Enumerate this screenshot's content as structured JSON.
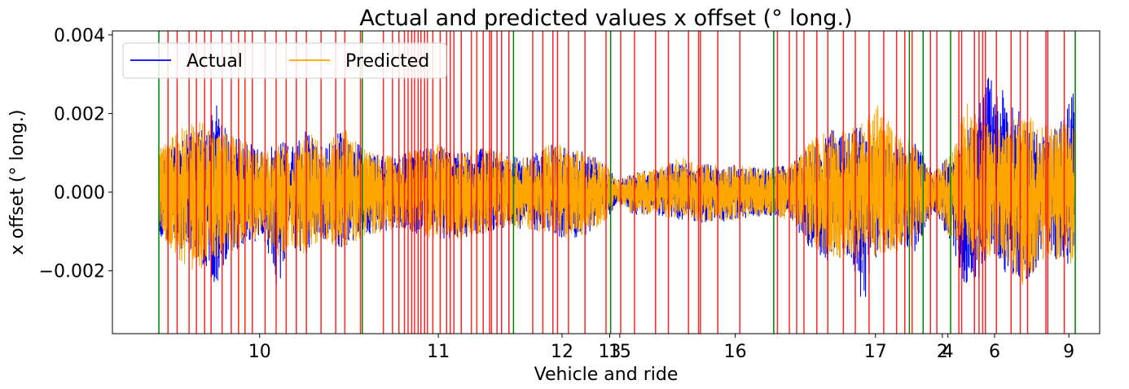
{
  "chart_data": {
    "type": "line",
    "title": "Actual and predicted values x offset (° long.)",
    "xlabel": "Vehicle and ride",
    "ylabel": "x offset (° long.)",
    "xlim": [
      0,
      1000
    ],
    "ylim": [
      -0.0036,
      0.0041
    ],
    "yticks": [
      {
        "value": -0.002,
        "label": "−0.002"
      },
      {
        "value": 0.0,
        "label": "0.000"
      },
      {
        "value": 0.002,
        "label": "0.002"
      },
      {
        "value": 0.004,
        "label": "0.004"
      }
    ],
    "xticks": [
      {
        "value": 110,
        "label": "10"
      },
      {
        "value": 305,
        "label": "11"
      },
      {
        "value": 440,
        "label": "12"
      },
      {
        "value": 492,
        "label": "13"
      },
      {
        "value": 503,
        "label": "15"
      },
      {
        "value": 629,
        "label": "16"
      },
      {
        "value": 782,
        "label": "17"
      },
      {
        "value": 855,
        "label": "2"
      },
      {
        "value": 861,
        "label": "4"
      },
      {
        "value": 912,
        "label": "6"
      },
      {
        "value": 993,
        "label": "9"
      }
    ],
    "legend": {
      "placement": "top-left",
      "columns": 2
    },
    "series": [
      {
        "name": "Actual",
        "color": "#0000ff",
        "envelope": [
          [
            0,
            0.001,
            -0.0012
          ],
          [
            20,
            0.0014,
            -0.0014
          ],
          [
            40,
            0.0016,
            -0.0017
          ],
          [
            55,
            0.0017,
            -0.002
          ],
          [
            62,
            0.0025,
            -0.0026
          ],
          [
            75,
            0.0015,
            -0.0016
          ],
          [
            95,
            0.0013,
            -0.0013
          ],
          [
            115,
            0.001,
            -0.0012
          ],
          [
            130,
            0.0013,
            -0.0026
          ],
          [
            145,
            0.0012,
            -0.0014
          ],
          [
            160,
            0.0016,
            -0.0016
          ],
          [
            180,
            0.0011,
            -0.0012
          ],
          [
            200,
            0.0016,
            -0.0015
          ],
          [
            225,
            0.0011,
            -0.0011
          ],
          [
            245,
            0.0009,
            -0.001
          ],
          [
            265,
            0.001,
            -0.0009
          ],
          [
            285,
            0.0011,
            -0.0011
          ],
          [
            305,
            0.0012,
            -0.0012
          ],
          [
            325,
            0.001,
            -0.0012
          ],
          [
            345,
            0.0011,
            -0.0011
          ],
          [
            365,
            0.0011,
            -0.001
          ],
          [
            385,
            0.0009,
            -0.0009
          ],
          [
            405,
            0.0009,
            -0.001
          ],
          [
            425,
            0.0012,
            -0.001
          ],
          [
            445,
            0.0012,
            -0.0012
          ],
          [
            465,
            0.001,
            -0.0011
          ],
          [
            485,
            0.0008,
            -0.0008
          ],
          [
            500,
            0.0003,
            -0.0003
          ],
          [
            520,
            0.0005,
            -0.0006
          ],
          [
            545,
            0.0006,
            -0.0006
          ],
          [
            570,
            0.0008,
            -0.0007
          ],
          [
            600,
            0.0007,
            -0.0008
          ],
          [
            630,
            0.0007,
            -0.0007
          ],
          [
            660,
            0.0006,
            -0.0006
          ],
          [
            690,
            0.0007,
            -0.0007
          ],
          [
            710,
            0.0012,
            -0.0015
          ],
          [
            735,
            0.0016,
            -0.0018
          ],
          [
            755,
            0.0015,
            -0.0016
          ],
          [
            770,
            0.0018,
            -0.0032
          ],
          [
            785,
            0.0014,
            -0.0016
          ],
          [
            805,
            0.0013,
            -0.0014
          ],
          [
            825,
            0.0013,
            -0.0015
          ],
          [
            845,
            0.0005,
            -0.0005
          ],
          [
            865,
            0.001,
            -0.0013
          ],
          [
            880,
            0.0014,
            -0.0024
          ],
          [
            895,
            0.0023,
            -0.0022
          ],
          [
            910,
            0.0032,
            -0.0015
          ],
          [
            925,
            0.0024,
            -0.0021
          ],
          [
            945,
            0.002,
            -0.0023
          ],
          [
            965,
            0.0014,
            -0.0017
          ],
          [
            985,
            0.0018,
            -0.0017
          ],
          [
            1000,
            0.0027,
            -0.002
          ]
        ]
      },
      {
        "name": "Predicted",
        "color": "#ffa500",
        "envelope": [
          [
            0,
            0.0011,
            -0.0011
          ],
          [
            20,
            0.0016,
            -0.0017
          ],
          [
            40,
            0.0018,
            -0.0021
          ],
          [
            55,
            0.0017,
            -0.0019
          ],
          [
            62,
            0.0015,
            -0.0017
          ],
          [
            75,
            0.0015,
            -0.0016
          ],
          [
            95,
            0.0013,
            -0.0013
          ],
          [
            115,
            0.001,
            -0.0011
          ],
          [
            130,
            0.0012,
            -0.0017
          ],
          [
            145,
            0.0012,
            -0.0014
          ],
          [
            160,
            0.0017,
            -0.0016
          ],
          [
            180,
            0.0011,
            -0.0012
          ],
          [
            200,
            0.0017,
            -0.0015
          ],
          [
            225,
            0.0011,
            -0.0011
          ],
          [
            245,
            0.0009,
            -0.001
          ],
          [
            265,
            0.001,
            -0.0009
          ],
          [
            285,
            0.0011,
            -0.0011
          ],
          [
            305,
            0.0012,
            -0.0012
          ],
          [
            325,
            0.001,
            -0.0012
          ],
          [
            345,
            0.0011,
            -0.0011
          ],
          [
            365,
            0.0011,
            -0.001
          ],
          [
            385,
            0.0009,
            -0.0009
          ],
          [
            405,
            0.0009,
            -0.001
          ],
          [
            425,
            0.0012,
            -0.001
          ],
          [
            445,
            0.0012,
            -0.0012
          ],
          [
            465,
            0.001,
            -0.0011
          ],
          [
            485,
            0.0008,
            -0.0008
          ],
          [
            500,
            0.0003,
            -0.0003
          ],
          [
            520,
            0.0005,
            -0.0006
          ],
          [
            545,
            0.0006,
            -0.0006
          ],
          [
            570,
            0.0009,
            -0.0007
          ],
          [
            600,
            0.0007,
            -0.0008
          ],
          [
            630,
            0.0007,
            -0.0007
          ],
          [
            660,
            0.0006,
            -0.0006
          ],
          [
            690,
            0.0007,
            -0.0007
          ],
          [
            710,
            0.0013,
            -0.0014
          ],
          [
            735,
            0.0017,
            -0.0017
          ],
          [
            755,
            0.0016,
            -0.0016
          ],
          [
            770,
            0.0018,
            -0.0018
          ],
          [
            785,
            0.0024,
            -0.0016
          ],
          [
            805,
            0.0014,
            -0.0015
          ],
          [
            825,
            0.0013,
            -0.0014
          ],
          [
            845,
            0.0005,
            -0.0005
          ],
          [
            865,
            0.001,
            -0.0012
          ],
          [
            880,
            0.0023,
            -0.0016
          ],
          [
            895,
            0.002,
            -0.0018
          ],
          [
            910,
            0.0017,
            -0.0016
          ],
          [
            925,
            0.0018,
            -0.0018
          ],
          [
            945,
            0.002,
            -0.0025
          ],
          [
            965,
            0.0017,
            -0.0017
          ],
          [
            985,
            0.0018,
            -0.0017
          ],
          [
            1000,
            0.0016,
            -0.0019
          ]
        ]
      }
    ],
    "vlines": {
      "green": {
        "color": "#008000",
        "x": [
          0,
          222,
          387,
          493,
          671,
          819,
          834,
          864,
          1000
        ]
      },
      "red": {
        "color": "#ff0000",
        "x": [
          10,
          20,
          33,
          41,
          50,
          57,
          69,
          79,
          87,
          94,
          102,
          116,
          128,
          139,
          150,
          161,
          177,
          193,
          203,
          220,
          245,
          255,
          262,
          268,
          272,
          276,
          279,
          283,
          286,
          290,
          293,
          299,
          307,
          314,
          318,
          322,
          330,
          341,
          347,
          354,
          361,
          363,
          369,
          374,
          382,
          408,
          419,
          430,
          435,
          447,
          465,
          488,
          504,
          519,
          542,
          556,
          578,
          589,
          591,
          610,
          634,
          675,
          688,
          696,
          704,
          718,
          730,
          747,
          760,
          775,
          791,
          805,
          814,
          822,
          842,
          849,
          873,
          876,
          890,
          895,
          899,
          902,
          914,
          930,
          940,
          948,
          968,
          970,
          988
        ]
      }
    }
  }
}
